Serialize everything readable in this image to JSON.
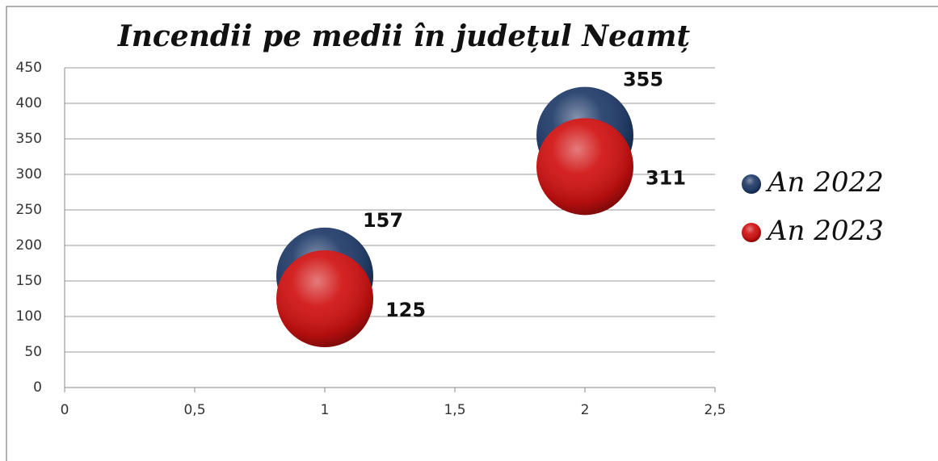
{
  "chart_data": {
    "type": "scatter",
    "title": "Incendii pe medii în județul  Neamț",
    "series": [
      {
        "name": "An 2022",
        "color": "#1f3a68",
        "x": [
          1,
          2
        ],
        "values": [
          157,
          355
        ]
      },
      {
        "name": "An 2023",
        "color": "#d01010",
        "x": [
          1,
          2
        ],
        "values": [
          125,
          311
        ]
      }
    ],
    "xlim": [
      0,
      2.5
    ],
    "xticks": [
      0,
      {
        "value": 0.5,
        "label": "0,5"
      },
      1,
      {
        "value": 1.5,
        "label": "1,5"
      },
      2,
      {
        "value": 2.5,
        "label": "2,5"
      }
    ],
    "ylim": [
      0,
      450
    ],
    "yticks": [
      0,
      50,
      100,
      150,
      200,
      250,
      300,
      350,
      400,
      450
    ],
    "grid": true,
    "legend": "right"
  }
}
